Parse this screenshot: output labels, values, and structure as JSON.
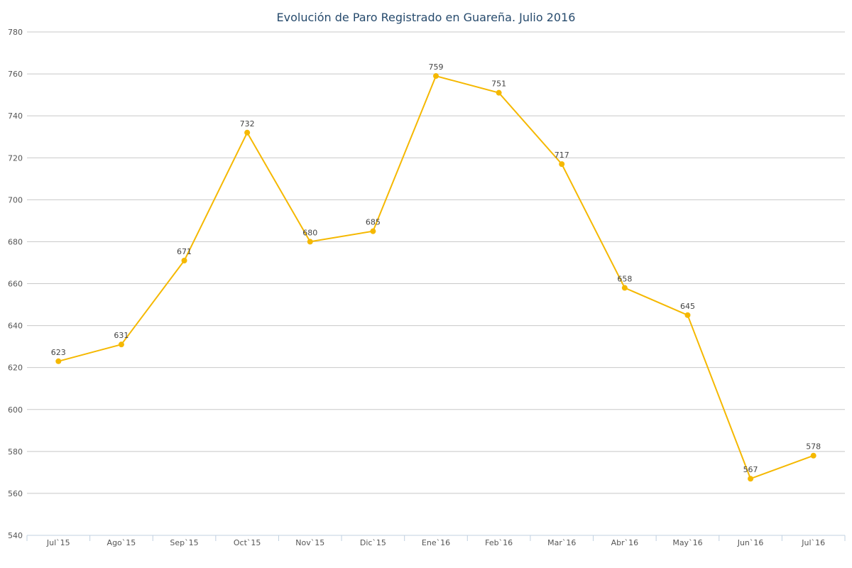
{
  "chart_data": {
    "type": "line",
    "title": "Evolución de Paro Registrado en Guareña. Julio 2016",
    "xlabel": "",
    "ylabel": "",
    "categories": [
      "Jul`15",
      "Ago`15",
      "Sep`15",
      "Oct`15",
      "Nov`15",
      "Dic`15",
      "Ene`16",
      "Feb`16",
      "Mar`16",
      "Abr`16",
      "May`16",
      "Jun`16",
      "Jul`16"
    ],
    "series": [
      {
        "values": [
          623,
          631,
          671,
          732,
          680,
          685,
          759,
          751,
          717,
          658,
          645,
          567,
          578
        ],
        "color": "#f5b800"
      }
    ],
    "ylim": [
      540,
      780
    ],
    "yticks": [
      "540",
      "560",
      "580",
      "600",
      "620",
      "640",
      "660",
      "680",
      "700",
      "720",
      "740",
      "760",
      "780"
    ],
    "grid": true,
    "legend": "none",
    "data_labels": true
  }
}
